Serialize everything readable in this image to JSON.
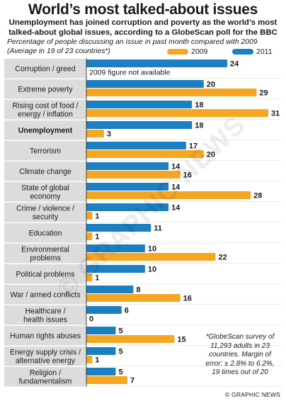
{
  "title": "World’s most talked-about issues",
  "subtitle": "Unemployment has joined corruption and poverty as the world’s most talked-about global issues, according to a GlobeScan poll for the BBC",
  "note_line1": "Percentage of people discussing an issue in past month compared with 2009",
  "note_line2": "(Average in 19 of 23 countries*)",
  "footnote": "*GlobeScan survey of 11,293 adults in 23 countries. Margin of error: ± 2.8% to 6.2%, 19 times out of 20",
  "credit": "© GRAPHIC NEWS",
  "watermark": "© GRAPHIC NEWS",
  "colors": {
    "y2009": "#f5a623",
    "y2011": "#1c7fc1",
    "label_bg": "#dcdcdc"
  },
  "chart_data": {
    "type": "bar",
    "orientation": "horizontal",
    "title": "World’s most talked-about issues",
    "xlim": [
      0,
      31
    ],
    "legend_position": "top-right",
    "series": [
      {
        "name": "2009",
        "values": [
          null,
          29,
          31,
          3,
          20,
          16,
          28,
          1,
          1,
          22,
          1,
          16,
          0,
          15,
          1,
          7
        ]
      },
      {
        "name": "2011",
        "values": [
          24,
          20,
          18,
          18,
          17,
          14,
          14,
          14,
          11,
          10,
          10,
          8,
          6,
          5,
          5,
          5
        ]
      }
    ],
    "categories": [
      [
        "Corruption / greed"
      ],
      [
        "Extreme poverty"
      ],
      [
        "Rising cost of food /",
        "energy / inflation"
      ],
      [
        "Unemployment"
      ],
      [
        "Terrorism"
      ],
      [
        "Climate change"
      ],
      [
        "State of global",
        "economy"
      ],
      [
        "Crime / violence /",
        "security"
      ],
      [
        "Education"
      ],
      [
        "Environmental",
        "problems"
      ],
      [
        "Political problems"
      ],
      [
        "War / armed conflicts"
      ],
      [
        "Healthcare /",
        "health issues"
      ],
      [
        "Human rights abuses"
      ],
      [
        "Energy supply crisis /",
        "alternative energy"
      ],
      [
        "Religion /",
        "fundamentalism"
      ]
    ],
    "bold_categories": [
      3
    ],
    "annotations": [
      {
        "row": 0,
        "text": "2009 figure not available"
      }
    ]
  }
}
